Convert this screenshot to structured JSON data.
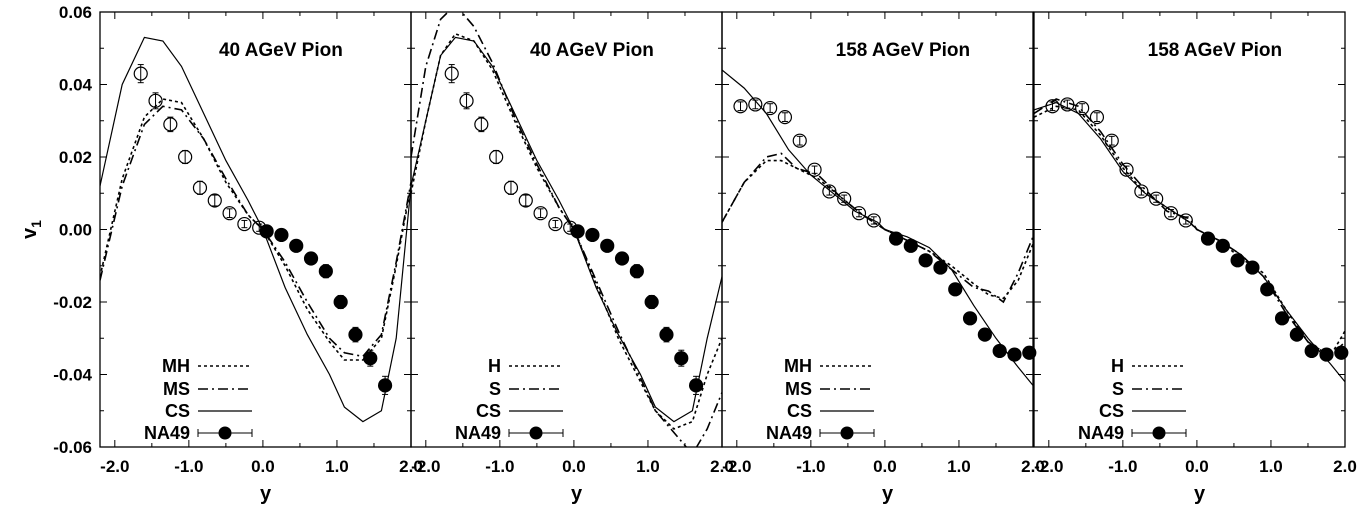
{
  "chart_data": {
    "type": "line",
    "y_axis": {
      "label": "v1",
      "ylim": [
        -0.06,
        0.06
      ],
      "ticks": [
        "0.06",
        "0.04",
        "0.02",
        "0.00",
        "-0.02",
        "-0.04",
        "-0.06"
      ]
    },
    "x_axis": {
      "label": "y",
      "xlim": [
        -2.2,
        2.0
      ],
      "ticks": [
        "-2.0",
        "-1.0",
        "0.0",
        "1.0",
        "2.0"
      ]
    },
    "panels": [
      {
        "title": "40 AGeV Pion",
        "legend": [
          "MH",
          "MS",
          "CS",
          "NA49"
        ],
        "series": [
          {
            "name": "MH",
            "style": "dotted",
            "x": [
              -2.2,
              -1.9,
              -1.6,
              -1.35,
              -1.1,
              -0.8,
              -0.5,
              -0.2,
              0.0,
              0.3,
              0.6,
              0.9,
              1.1,
              1.35,
              1.6,
              1.8,
              2.0
            ],
            "y": [
              -0.013,
              0.014,
              0.031,
              0.036,
              0.035,
              0.025,
              0.013,
              0.004,
              0.0,
              -0.01,
              -0.022,
              -0.031,
              -0.036,
              -0.036,
              -0.03,
              -0.01,
              0.012
            ]
          },
          {
            "name": "MS",
            "style": "dashdot",
            "x": [
              -2.2,
              -1.9,
              -1.6,
              -1.35,
              -1.1,
              -0.8,
              -0.5,
              -0.2,
              0.0,
              0.3,
              0.6,
              0.9,
              1.1,
              1.35,
              1.6,
              1.8,
              2.0
            ],
            "y": [
              -0.014,
              0.012,
              0.029,
              0.034,
              0.033,
              0.025,
              0.014,
              0.004,
              0.0,
              -0.009,
              -0.02,
              -0.03,
              -0.034,
              -0.035,
              -0.029,
              -0.009,
              0.013
            ]
          },
          {
            "name": "CS",
            "style": "solid",
            "x": [
              -2.2,
              -1.9,
              -1.6,
              -1.35,
              -1.1,
              -0.8,
              -0.5,
              -0.2,
              0.0,
              0.3,
              0.6,
              0.9,
              1.1,
              1.35,
              1.6,
              1.8,
              2.0
            ],
            "y": [
              0.012,
              0.04,
              0.053,
              0.052,
              0.045,
              0.032,
              0.019,
              0.008,
              0.0,
              -0.016,
              -0.029,
              -0.04,
              -0.049,
              -0.053,
              -0.05,
              -0.03,
              0.012
            ]
          }
        ],
        "points": {
          "name": "NA49",
          "x": [
            -1.65,
            -1.45,
            -1.25,
            -1.05,
            -0.85,
            -0.65,
            -0.45,
            -0.25,
            -0.05,
            0.05,
            0.25,
            0.45,
            0.65,
            0.85,
            1.05,
            1.25,
            1.45,
            1.65
          ],
          "y": [
            0.043,
            0.0355,
            0.029,
            0.02,
            0.0115,
            0.008,
            0.0045,
            0.0015,
            0.0005,
            -0.0005,
            -0.0015,
            -0.0045,
            -0.008,
            -0.0115,
            -0.02,
            -0.029,
            -0.0355,
            -0.043
          ],
          "err": [
            0.0025,
            0.0022,
            0.002,
            0.0018,
            0.0018,
            0.0015,
            0.0012,
            0.001,
            0.001,
            0.001,
            0.001,
            0.0012,
            0.0015,
            0.0018,
            0.0018,
            0.002,
            0.0022,
            0.0025
          ]
        }
      },
      {
        "title": "40 AGeV Pion",
        "legend": [
          "H",
          "S",
          "CS",
          "NA49"
        ],
        "series": [
          {
            "name": "H",
            "style": "dotted",
            "x": [
              -2.2,
              -2.0,
              -1.8,
              -1.6,
              -1.35,
              -1.1,
              -0.8,
              -0.5,
              -0.2,
              0.0,
              0.3,
              0.6,
              0.9,
              1.1,
              1.35,
              1.6,
              1.8,
              2.0
            ],
            "y": [
              0.01,
              0.03,
              0.048,
              0.054,
              0.052,
              0.044,
              0.03,
              0.017,
              0.006,
              0.0,
              -0.015,
              -0.03,
              -0.042,
              -0.05,
              -0.055,
              -0.053,
              -0.04,
              -0.03
            ]
          },
          {
            "name": "S",
            "style": "dashdot",
            "x": [
              -2.2,
              -2.0,
              -1.8,
              -1.6,
              -1.35,
              -1.1,
              -0.8,
              -0.5,
              -0.2,
              0.0,
              0.3,
              0.6,
              0.9,
              1.1,
              1.35,
              1.6,
              1.8,
              2.0
            ],
            "y": [
              0.02,
              0.045,
              0.058,
              0.062,
              0.056,
              0.046,
              0.031,
              0.018,
              0.006,
              0.0,
              -0.014,
              -0.028,
              -0.041,
              -0.05,
              -0.056,
              -0.062,
              -0.055,
              -0.045
            ]
          },
          {
            "name": "CS",
            "style": "solid",
            "x": [
              -2.2,
              -2.0,
              -1.8,
              -1.6,
              -1.35,
              -1.1,
              -0.8,
              -0.5,
              -0.2,
              0.0,
              0.3,
              0.6,
              0.9,
              1.1,
              1.35,
              1.6,
              1.8,
              2.0
            ],
            "y": [
              0.012,
              0.03,
              0.048,
              0.053,
              0.052,
              0.045,
              0.032,
              0.019,
              0.008,
              0.0,
              -0.016,
              -0.029,
              -0.04,
              -0.049,
              -0.053,
              -0.05,
              -0.03,
              -0.013
            ]
          }
        ],
        "points": {
          "name": "NA49",
          "x": [
            -1.65,
            -1.45,
            -1.25,
            -1.05,
            -0.85,
            -0.65,
            -0.45,
            -0.25,
            -0.05,
            0.05,
            0.25,
            0.45,
            0.65,
            0.85,
            1.05,
            1.25,
            1.45,
            1.65
          ],
          "y": [
            0.043,
            0.0355,
            0.029,
            0.02,
            0.0115,
            0.008,
            0.0045,
            0.0015,
            0.0005,
            -0.0005,
            -0.0015,
            -0.0045,
            -0.008,
            -0.0115,
            -0.02,
            -0.029,
            -0.0355,
            -0.043
          ],
          "err": [
            0.0025,
            0.0022,
            0.002,
            0.0018,
            0.0018,
            0.0015,
            0.0012,
            0.001,
            0.001,
            0.001,
            0.001,
            0.0012,
            0.0015,
            0.0018,
            0.0018,
            0.002,
            0.0022,
            0.0025
          ]
        }
      },
      {
        "title": "158 AGeV Pion",
        "legend": [
          "MH",
          "MS",
          "CS",
          "NA49"
        ],
        "series": [
          {
            "name": "MH",
            "style": "dotted",
            "x": [
              -2.2,
              -1.9,
              -1.6,
              -1.4,
              -1.2,
              -0.9,
              -0.6,
              -0.3,
              0.0,
              0.3,
              0.6,
              0.9,
              1.2,
              1.4,
              1.6,
              1.8,
              2.0
            ],
            "y": [
              0.002,
              0.013,
              0.019,
              0.019,
              0.017,
              0.014,
              0.009,
              0.004,
              0.0,
              -0.003,
              -0.006,
              -0.01,
              -0.015,
              -0.018,
              -0.019,
              -0.014,
              -0.004
            ]
          },
          {
            "name": "MS",
            "style": "dashdot",
            "x": [
              -2.2,
              -1.9,
              -1.6,
              -1.4,
              -1.2,
              -0.9,
              -0.6,
              -0.3,
              0.0,
              0.3,
              0.6,
              0.9,
              1.2,
              1.4,
              1.6,
              1.8,
              2.0
            ],
            "y": [
              0.002,
              0.013,
              0.02,
              0.021,
              0.017,
              0.015,
              0.009,
              0.004,
              0.0,
              -0.003,
              -0.006,
              -0.011,
              -0.016,
              -0.017,
              -0.02,
              -0.012,
              -0.002
            ]
          },
          {
            "name": "CS",
            "style": "solid",
            "x": [
              -2.2,
              -1.9,
              -1.6,
              -1.3,
              -1.0,
              -0.7,
              -0.4,
              -0.1,
              0.0,
              0.3,
              0.6,
              0.9,
              1.2,
              1.5,
              1.8,
              2.0
            ],
            "y": [
              0.044,
              0.039,
              0.032,
              0.022,
              0.015,
              0.01,
              0.005,
              0.002,
              0.0,
              -0.002,
              -0.005,
              -0.011,
              -0.021,
              -0.03,
              -0.038,
              -0.043
            ]
          }
        ],
        "points": {
          "name": "NA49",
          "x": [
            -1.95,
            -1.75,
            -1.55,
            -1.35,
            -1.15,
            -0.95,
            -0.75,
            -0.55,
            -0.35,
            -0.15,
            0.15,
            0.35,
            0.55,
            0.75,
            0.95,
            1.15,
            1.35,
            1.55,
            1.75,
            1.95
          ],
          "y": [
            0.034,
            0.0345,
            0.0335,
            0.031,
            0.0245,
            0.0165,
            0.0105,
            0.0085,
            0.0045,
            0.0025,
            -0.0025,
            -0.0045,
            -0.0085,
            -0.0105,
            -0.0165,
            -0.0245,
            -0.029,
            -0.0335,
            -0.0345,
            -0.034
          ],
          "err": [
            0.0012,
            0.0012,
            0.0012,
            0.0012,
            0.0012,
            0.001,
            0.001,
            0.001,
            0.001,
            0.001,
            0.001,
            0.001,
            0.001,
            0.001,
            0.001,
            0.0012,
            0.0012,
            0.0012,
            0.0012,
            0.0012
          ]
        }
      },
      {
        "title": "158 AGeV Pion",
        "legend": [
          "H",
          "S",
          "CS",
          "NA49"
        ],
        "series": [
          {
            "name": "H",
            "style": "dotted",
            "x": [
              -2.2,
              -1.9,
              -1.6,
              -1.3,
              -1.0,
              -0.7,
              -0.4,
              -0.1,
              0.0,
              0.3,
              0.6,
              0.9,
              1.2,
              1.5,
              1.8,
              2.0
            ],
            "y": [
              0.031,
              0.034,
              0.033,
              0.026,
              0.017,
              0.01,
              0.006,
              0.002,
              0.0,
              -0.003,
              -0.008,
              -0.012,
              -0.022,
              -0.031,
              -0.035,
              -0.028
            ]
          },
          {
            "name": "S",
            "style": "dashdot",
            "x": [
              -2.2,
              -1.9,
              -1.6,
              -1.3,
              -1.0,
              -0.7,
              -0.4,
              -0.1,
              0.0,
              0.3,
              0.6,
              0.9,
              1.2,
              1.5,
              1.8,
              2.0
            ],
            "y": [
              0.032,
              0.036,
              0.034,
              0.027,
              0.018,
              0.011,
              0.005,
              0.003,
              0.0,
              -0.003,
              -0.007,
              -0.013,
              -0.023,
              -0.031,
              -0.035,
              -0.031
            ]
          },
          {
            "name": "CS",
            "style": "solid",
            "x": [
              -2.2,
              -1.9,
              -1.6,
              -1.3,
              -1.0,
              -0.7,
              -0.4,
              -0.1,
              0.0,
              0.3,
              0.6,
              0.9,
              1.2,
              1.5,
              1.8,
              2.0
            ],
            "y": [
              0.033,
              0.035,
              0.032,
              0.025,
              0.016,
              0.01,
              0.006,
              0.002,
              0.0,
              -0.003,
              -0.007,
              -0.013,
              -0.022,
              -0.03,
              -0.037,
              -0.042
            ]
          }
        ],
        "points": {
          "name": "NA49",
          "x": [
            -1.95,
            -1.75,
            -1.55,
            -1.35,
            -1.15,
            -0.95,
            -0.75,
            -0.55,
            -0.35,
            -0.15,
            0.15,
            0.35,
            0.55,
            0.75,
            0.95,
            1.15,
            1.35,
            1.55,
            1.75,
            1.95
          ],
          "y": [
            0.034,
            0.0345,
            0.0335,
            0.031,
            0.0245,
            0.0165,
            0.0105,
            0.0085,
            0.0045,
            0.0025,
            -0.0025,
            -0.0045,
            -0.0085,
            -0.0105,
            -0.0165,
            -0.0245,
            -0.029,
            -0.0335,
            -0.0345,
            -0.034
          ],
          "err": [
            0.0012,
            0.0012,
            0.0012,
            0.0012,
            0.0012,
            0.001,
            0.001,
            0.001,
            0.001,
            0.001,
            0.001,
            0.001,
            0.001,
            0.001,
            0.001,
            0.0012,
            0.0012,
            0.0012,
            0.0012,
            0.0012
          ]
        }
      }
    ]
  }
}
